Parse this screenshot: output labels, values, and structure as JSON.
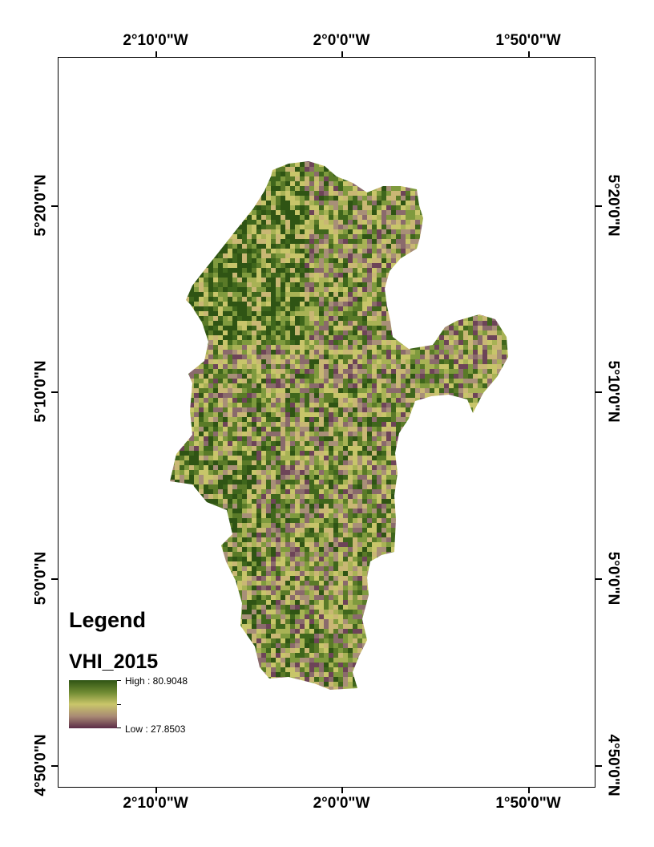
{
  "graticule": {
    "top_labels": [
      "2°10'0\"W",
      "2°0'0\"W",
      "1°50'0\"W"
    ],
    "bottom_labels": [
      "2°10'0\"W",
      "2°0'0\"W",
      "1°50'0\"W"
    ],
    "left_labels": [
      "5°20'0\"N",
      "5°10'0\"N",
      "5°0'0\"N",
      "4°50'0\"N"
    ],
    "right_labels": [
      "5°20'0\"N",
      "5°10'0\"N",
      "5°0'0\"N",
      "4°50'0\"N"
    ]
  },
  "legend": {
    "title": "Legend",
    "layer_name": "VHI_2015",
    "high_label": "High : 80.9048",
    "low_label": "Low : 27.8503",
    "high_value": 80.9048,
    "low_value": 27.8503,
    "ramp_colors": [
      "#2f5414",
      "#6e8a32",
      "#c9c66a",
      "#a98a74",
      "#5b2c47"
    ]
  },
  "map": {
    "variable": "VHI_2015",
    "palette": [
      "#2f5414",
      "#3f661c",
      "#5a7a28",
      "#7f9a3e",
      "#a8b255",
      "#c8c56a",
      "#c9b774",
      "#a88f78",
      "#8a6a6c",
      "#6d4458"
    ]
  }
}
